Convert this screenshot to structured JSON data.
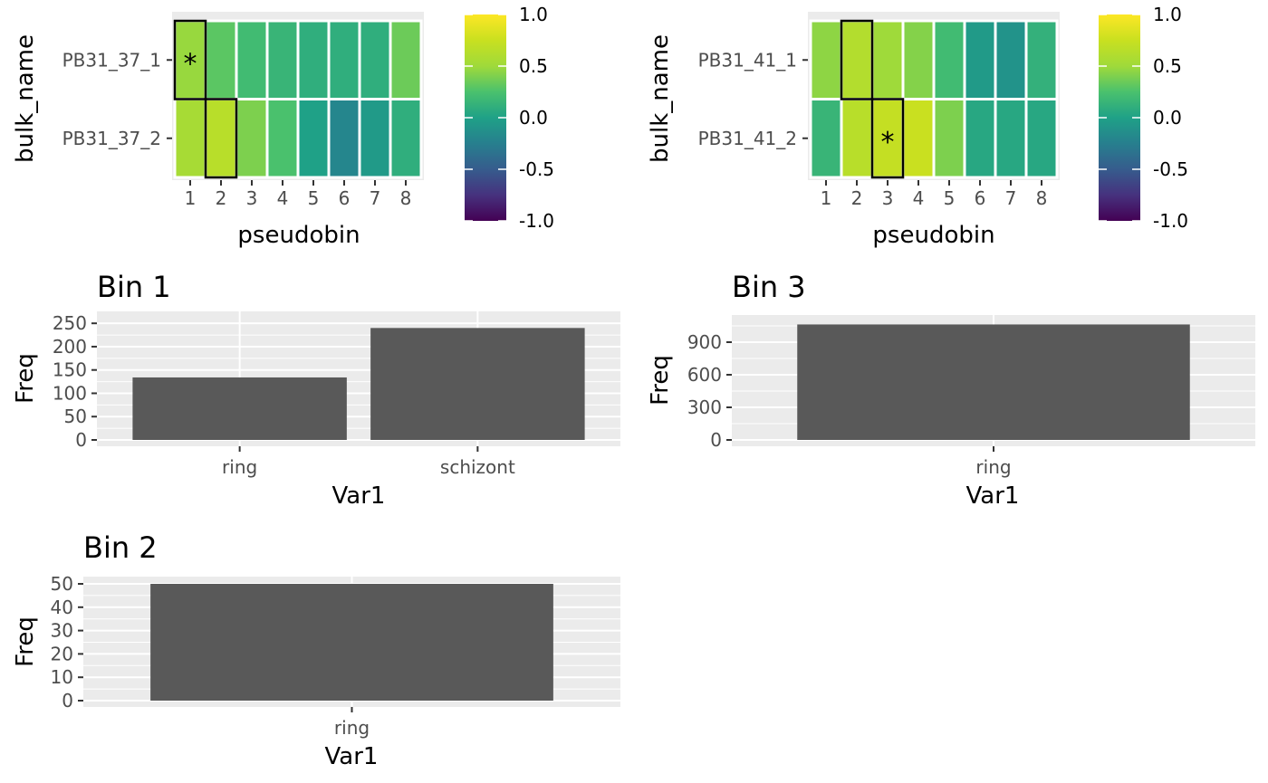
{
  "chart_data": [
    {
      "type": "heatmap",
      "title": "",
      "xlabel": "pseudobin",
      "ylabel": "bulk_name",
      "x_categories": [
        "1",
        "2",
        "3",
        "4",
        "5",
        "6",
        "7",
        "8"
      ],
      "y_categories": [
        "PB31_37_1",
        "PB31_37_2"
      ],
      "values": [
        [
          0.48,
          0.3,
          0.2,
          0.15,
          0.1,
          0.1,
          0.1,
          0.35
        ],
        [
          0.55,
          0.65,
          0.4,
          0.25,
          0.0,
          -0.2,
          -0.05,
          0.1
        ]
      ],
      "outlined_cells": [
        [
          0,
          0
        ],
        [
          1,
          1
        ]
      ],
      "star_cells": [
        [
          0,
          0
        ]
      ],
      "star_label": "*",
      "colorbar": {
        "limits": [
          -1.0,
          1.0
        ],
        "ticks": [
          "1.0",
          "0.5",
          "0.0",
          "-0.5",
          "-1.0"
        ],
        "tick_values": [
          1.0,
          0.5,
          0.0,
          -0.5,
          -1.0
        ],
        "palette": "viridis"
      }
    },
    {
      "type": "heatmap",
      "title": "",
      "xlabel": "pseudobin",
      "ylabel": "bulk_name",
      "x_categories": [
        "1",
        "2",
        "3",
        "4",
        "5",
        "6",
        "7",
        "8"
      ],
      "y_categories": [
        "PB31_41_1",
        "PB31_41_2"
      ],
      "values": [
        [
          0.45,
          0.62,
          0.5,
          0.42,
          0.2,
          -0.05,
          -0.1,
          0.12
        ],
        [
          0.15,
          0.65,
          0.72,
          0.75,
          0.4,
          0.05,
          0.05,
          0.05
        ]
      ],
      "outlined_cells": [
        [
          0,
          1
        ],
        [
          1,
          2
        ]
      ],
      "star_cells": [
        [
          1,
          2
        ]
      ],
      "star_label": "*",
      "colorbar": {
        "limits": [
          -1.0,
          1.0
        ],
        "ticks": [
          "1.0",
          "0.5",
          "0.0",
          "-0.5",
          "-1.0"
        ],
        "tick_values": [
          1.0,
          0.5,
          0.0,
          -0.5,
          -1.0
        ],
        "palette": "viridis"
      }
    },
    {
      "type": "bar",
      "title": "Bin 1",
      "xlabel": "Var1",
      "ylabel": "Freq",
      "categories": [
        "ring",
        "schizont"
      ],
      "values": [
        134,
        240
      ],
      "yticks": [
        0,
        50,
        100,
        150,
        200,
        250
      ],
      "ylim": [
        0,
        262
      ],
      "bar_color": "#595959"
    },
    {
      "type": "bar",
      "title": "Bin 3",
      "xlabel": "Var1",
      "ylabel": "Freq",
      "categories": [
        "ring"
      ],
      "values": [
        1063
      ],
      "yticks": [
        0,
        300,
        600,
        900
      ],
      "ylim": [
        0,
        1120
      ],
      "bar_color": "#595959"
    },
    {
      "type": "bar",
      "title": "Bin 2",
      "xlabel": "Var1",
      "ylabel": "Freq",
      "categories": [
        "ring"
      ],
      "values": [
        50
      ],
      "yticks": [
        0,
        10,
        20,
        30,
        40,
        50
      ],
      "ylim": [
        0,
        52.6
      ],
      "bar_color": "#595959"
    }
  ]
}
